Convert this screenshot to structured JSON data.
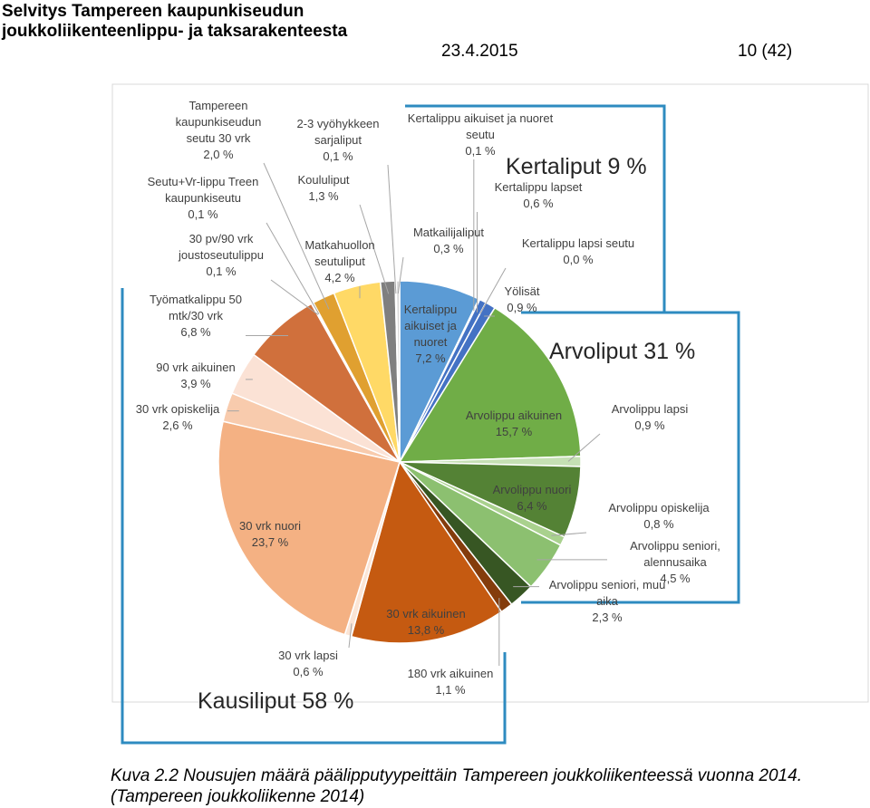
{
  "header": {
    "title_lines": [
      "Selvitys Tampereen kaupunkiseudun",
      "joukkoliikenteenlippu- ja taksarakenteesta"
    ],
    "date": "23.4.2015",
    "page": "10 (42)"
  },
  "chart_data": {
    "type": "pie",
    "categories": [
      "Kertalippu aikuiset ja nuoret",
      "Kertalippu aikuiset ja nuoret seutu",
      "Kertalippu lapset",
      "Kertalippu lapsi seutu",
      "Yölisät",
      "Arvolippu aikuinen",
      "Arvolippu lapsi",
      "Arvolippu nuori",
      "Arvolippu opiskelija",
      "Arvolippu seniori, alennusaika",
      "Arvolippu seniori, muu aika",
      "180 vrk aikuinen",
      "30 vrk aikuinen",
      "30 vrk lapsi",
      "30 vrk nuori",
      "30 vrk opiskelija",
      "90 vrk aikuinen",
      "Työmatkalippu 50 mtk/30 vrk",
      "30 pv/90 vrk joustoseutulippu",
      "Seutu+Vr-lippu Treen kaupunkiseutu",
      "Tampereen kaupunkiseudun seutu 30 vrk",
      "Matkahuollon seutuliput",
      "Koululiput",
      "2-3 vyöhykkeen sarjaliput",
      "Matkailijaliput"
    ],
    "values": [
      7.2,
      0.1,
      0.6,
      0.0,
      0.9,
      15.7,
      0.9,
      6.4,
      0.8,
      4.5,
      2.3,
      1.1,
      13.8,
      0.6,
      23.7,
      2.6,
      3.9,
      6.8,
      0.1,
      0.1,
      2.0,
      4.2,
      1.3,
      0.1,
      0.3
    ],
    "value_labels": [
      "7,2 %",
      "0,1 %",
      "0,6 %",
      "0,0 %",
      "0,9 %",
      "15,7 %",
      "0,9 %",
      "6,4 %",
      "0,8 %",
      "4,5 %",
      "2,3 %",
      "1,1 %",
      "13,8 %",
      "0,6 %",
      "23,7 %",
      "2,6 %",
      "3,9 %",
      "6,8 %",
      "0,1 %",
      "0,1 %",
      "2,0 %",
      "4,2 %",
      "1,3 %",
      "0,1 %",
      "0,3 %"
    ],
    "colors": [
      "#5b9bd5",
      "#264478",
      "#4472c4",
      "#1f3864",
      "#4472c4",
      "#70ad47",
      "#c5e0b4",
      "#548235",
      "#a9d18e",
      "#8cc070",
      "#375623",
      "#843c0c",
      "#c55a11",
      "#fbe5d6",
      "#f4b183",
      "#f8cbad",
      "#fbe2d5",
      "#d0703c",
      "#f2f2f2",
      "#f2f2f2",
      "#e0a030",
      "#ffd966",
      "#7f7f7f",
      "#e7e6e6",
      "#d9d9d9"
    ],
    "annotations": [
      "Kertaliput 9 %",
      "Arvoliput 31 %",
      "Kausiliput 58 %"
    ]
  },
  "caption": "Kuva 2.2 Nousujen määrä päälipputyypeittäin Tampereen joukkoliikenteessä vuonna 2014. (Tampereen joukkoliikenne 2014)"
}
